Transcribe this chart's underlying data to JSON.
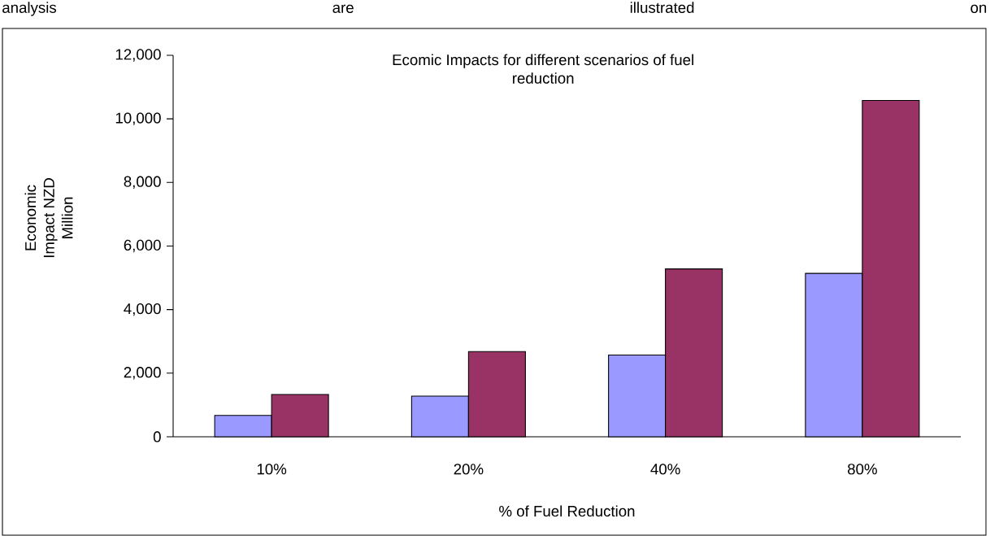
{
  "chart_data": {
    "type": "bar",
    "title": "Ecomic Impacts for different scenarios of fuel reduction",
    "xlabel": "% of Fuel Reduction",
    "ylabel": "Economic Impact NZD Million",
    "annotations": [
      "analysis are illustrated on"
    ],
    "categories": [
      "10%",
      "20%",
      "40%",
      "80%"
    ],
    "series": [
      {
        "color": "#9999ff",
        "values": [
          670,
          1280,
          2570,
          5140
        ]
      },
      {
        "color": "#993366",
        "values": [
          1330,
          2680,
          5280,
          10580
        ]
      }
    ],
    "ylim": [
      0,
      12000
    ],
    "yticks": [
      0,
      {
        "value": 2000,
        "label": "2,000"
      },
      {
        "value": 4000,
        "label": "4,000"
      },
      {
        "value": 6000,
        "label": "6,000"
      },
      {
        "value": 8000,
        "label": "8,000"
      },
      {
        "value": 10000,
        "label": "10,000"
      },
      {
        "value": 12000,
        "label": "12,000"
      }
    ]
  }
}
